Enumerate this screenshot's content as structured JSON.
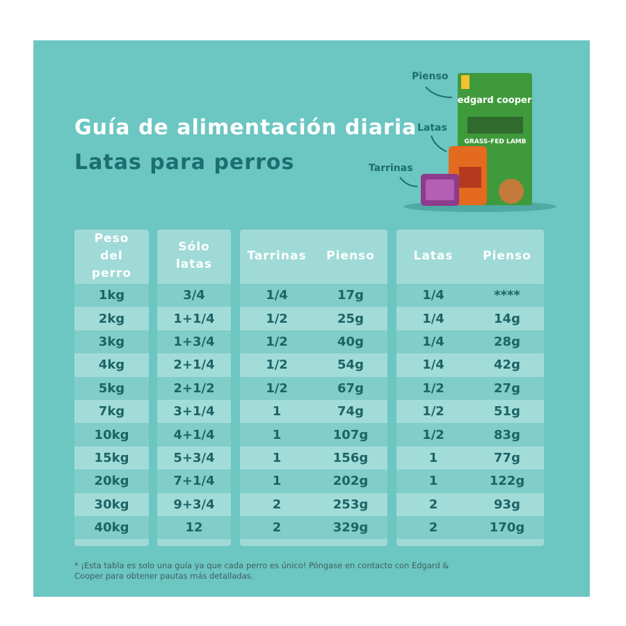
{
  "header": {
    "title": "Guía de alimentación diaria",
    "subtitle": "Latas para perros"
  },
  "product": {
    "labels": [
      "Pienso",
      "Latas",
      "Tarrinas"
    ],
    "bag_brand": "edgard cooper",
    "bag_flavor": "GRASS-FED LAMB"
  },
  "table": {
    "headers": [
      "Peso del perro",
      "Sólo latas",
      "Tarrinas",
      "Pienso",
      "Latas",
      "Pienso"
    ],
    "rows": [
      [
        "1kg",
        "3/4",
        "1/4",
        "17g",
        "1/4",
        "****"
      ],
      [
        "2kg",
        "1+1/4",
        "1/2",
        "25g",
        "1/4",
        "14g"
      ],
      [
        "3kg",
        "1+3/4",
        "1/2",
        "40g",
        "1/4",
        "28g"
      ],
      [
        "4kg",
        "2+1/4",
        "1/2",
        "54g",
        "1/4",
        "42g"
      ],
      [
        "5kg",
        "2+1/2",
        "1/2",
        "67g",
        "1/2",
        "27g"
      ],
      [
        "7kg",
        "3+1/4",
        "1",
        "74g",
        "1/2",
        "51g"
      ],
      [
        "10kg",
        "4+1/4",
        "1",
        "107g",
        "1/2",
        "83g"
      ],
      [
        "15kg",
        "5+3/4",
        "1",
        "156g",
        "1",
        "77g"
      ],
      [
        "20kg",
        "7+1/4",
        "1",
        "202g",
        "1",
        "122g"
      ],
      [
        "30kg",
        "9+3/4",
        "2",
        "253g",
        "2",
        "93g"
      ],
      [
        "40kg",
        "12",
        "2",
        "329g",
        "2",
        "170g"
      ]
    ]
  },
  "footnote": "* ¡Esta tabla es solo una guía ya que cada perro es único! Póngase en contacto con Edgard & Cooper para obtener pautas más detalladas."
}
